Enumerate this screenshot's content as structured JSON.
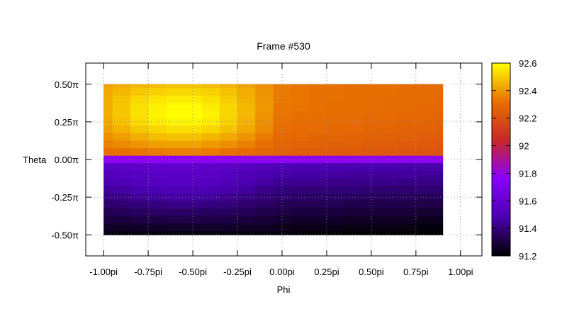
{
  "chart_data": {
    "type": "heatmap",
    "title": "Frame #530",
    "xlabel": "Phi",
    "ylabel": "Theta",
    "xlim": [
      -1.1,
      1.12
    ],
    "ylim": [
      -0.64,
      0.64
    ],
    "x_ticks": [
      {
        "value": -1.0,
        "label": "-1.00pi"
      },
      {
        "value": -0.75,
        "label": "-0.75pi"
      },
      {
        "value": -0.5,
        "label": "-0.50pi"
      },
      {
        "value": -0.25,
        "label": "-0.25pi"
      },
      {
        "value": 0.0,
        "label": "0.00pi"
      },
      {
        "value": 0.25,
        "label": "0.25pi"
      },
      {
        "value": 0.5,
        "label": "0.50pi"
      },
      {
        "value": 0.75,
        "label": "0.75pi"
      },
      {
        "value": 1.0,
        "label": "1.00pi"
      }
    ],
    "y_ticks": [
      {
        "value": 0.5,
        "label": "0.50π"
      },
      {
        "value": 0.25,
        "label": "0.25π"
      },
      {
        "value": 0.0,
        "label": "0.00π"
      },
      {
        "value": -0.25,
        "label": "-0.25π"
      },
      {
        "value": -0.5,
        "label": "-0.50π"
      }
    ],
    "grid": true,
    "data_extent": {
      "x": [
        -1.0,
        0.9
      ],
      "y": [
        -0.5,
        0.5
      ]
    },
    "x_samples": [
      -1.0,
      -0.9,
      -0.8,
      -0.7,
      -0.6,
      -0.5,
      -0.4,
      -0.3,
      -0.2,
      -0.1,
      0.0,
      0.1,
      0.2,
      0.3,
      0.4,
      0.5,
      0.6,
      0.7,
      0.8,
      0.9
    ],
    "y_samples": [
      0.5,
      0.45,
      0.4,
      0.35,
      0.3,
      0.25,
      0.2,
      0.15,
      0.1,
      0.05,
      0.0,
      -0.05,
      -0.1,
      -0.15,
      -0.2,
      -0.25,
      -0.3,
      -0.35,
      -0.4,
      -0.45,
      -0.5
    ],
    "z": [
      [
        92.42,
        92.44,
        92.46,
        92.47,
        92.48,
        92.48,
        92.47,
        92.45,
        92.42,
        92.38,
        92.34,
        92.33,
        92.32,
        92.32,
        92.31,
        92.31,
        92.31,
        92.3,
        92.3,
        92.3
      ],
      [
        92.43,
        92.46,
        92.49,
        92.51,
        92.52,
        92.52,
        92.51,
        92.48,
        92.44,
        92.39,
        92.34,
        92.33,
        92.32,
        92.32,
        92.31,
        92.31,
        92.31,
        92.3,
        92.3,
        92.3
      ],
      [
        92.44,
        92.48,
        92.52,
        92.55,
        92.56,
        92.56,
        92.54,
        92.5,
        92.45,
        92.39,
        92.34,
        92.33,
        92.32,
        92.32,
        92.31,
        92.31,
        92.3,
        92.3,
        92.3,
        92.29
      ],
      [
        92.44,
        92.49,
        92.54,
        92.57,
        92.59,
        92.59,
        92.56,
        92.52,
        92.46,
        92.4,
        92.33,
        92.33,
        92.32,
        92.31,
        92.31,
        92.31,
        92.3,
        92.3,
        92.29,
        92.29
      ],
      [
        92.44,
        92.49,
        92.54,
        92.58,
        92.6,
        92.6,
        92.57,
        92.52,
        92.46,
        92.39,
        92.33,
        92.32,
        92.32,
        92.31,
        92.31,
        92.3,
        92.3,
        92.29,
        92.29,
        92.28
      ],
      [
        92.43,
        92.48,
        92.53,
        92.56,
        92.58,
        92.58,
        92.56,
        92.51,
        92.45,
        92.38,
        92.32,
        92.31,
        92.31,
        92.3,
        92.3,
        92.29,
        92.29,
        92.28,
        92.28,
        92.27
      ],
      [
        92.41,
        92.45,
        92.49,
        92.52,
        92.54,
        92.54,
        92.52,
        92.48,
        92.43,
        92.37,
        92.31,
        92.3,
        92.3,
        92.29,
        92.29,
        92.28,
        92.28,
        92.27,
        92.27,
        92.26
      ],
      [
        92.38,
        92.41,
        92.44,
        92.47,
        92.48,
        92.48,
        92.46,
        92.43,
        92.39,
        92.34,
        92.29,
        92.29,
        92.28,
        92.28,
        92.27,
        92.27,
        92.26,
        92.26,
        92.25,
        92.25
      ],
      [
        92.35,
        92.37,
        92.39,
        92.41,
        92.42,
        92.42,
        92.4,
        92.38,
        92.35,
        92.31,
        92.28,
        92.27,
        92.27,
        92.26,
        92.26,
        92.25,
        92.25,
        92.24,
        92.24,
        92.23
      ],
      [
        92.31,
        92.32,
        92.33,
        92.34,
        92.35,
        92.35,
        92.34,
        92.32,
        92.3,
        92.28,
        92.26,
        92.25,
        92.25,
        92.24,
        92.24,
        92.23,
        92.23,
        92.22,
        92.22,
        92.21
      ],
      [
        91.78,
        91.78,
        91.78,
        91.78,
        91.78,
        91.78,
        91.78,
        91.78,
        91.78,
        91.78,
        91.78,
        91.78,
        91.78,
        91.78,
        91.78,
        91.78,
        91.78,
        91.78,
        91.78,
        91.78
      ],
      [
        91.55,
        91.56,
        91.57,
        91.58,
        91.58,
        91.58,
        91.57,
        91.56,
        91.54,
        91.52,
        91.5,
        91.49,
        91.49,
        91.48,
        91.48,
        91.48,
        91.48,
        91.47,
        91.47,
        91.47
      ],
      [
        91.51,
        91.53,
        91.54,
        91.55,
        91.56,
        91.56,
        91.55,
        91.53,
        91.51,
        91.49,
        91.47,
        91.46,
        91.46,
        91.46,
        91.45,
        91.45,
        91.45,
        91.45,
        91.44,
        91.44
      ],
      [
        91.48,
        91.5,
        91.52,
        91.53,
        91.54,
        91.54,
        91.53,
        91.51,
        91.49,
        91.46,
        91.43,
        91.43,
        91.43,
        91.42,
        91.42,
        91.42,
        91.42,
        91.41,
        91.41,
        91.41
      ],
      [
        91.44,
        91.46,
        91.48,
        91.49,
        91.5,
        91.5,
        91.49,
        91.47,
        91.45,
        91.42,
        91.4,
        91.39,
        91.39,
        91.39,
        91.39,
        91.38,
        91.38,
        91.38,
        91.38,
        91.37
      ],
      [
        91.41,
        91.42,
        91.44,
        91.45,
        91.46,
        91.46,
        91.45,
        91.43,
        91.41,
        91.39,
        91.37,
        91.36,
        91.36,
        91.36,
        91.35,
        91.35,
        91.35,
        91.35,
        91.34,
        91.34
      ],
      [
        91.37,
        91.38,
        91.39,
        91.4,
        91.41,
        91.41,
        91.4,
        91.39,
        91.37,
        91.36,
        91.34,
        91.33,
        91.33,
        91.33,
        91.32,
        91.32,
        91.32,
        91.32,
        91.31,
        91.31
      ],
      [
        91.33,
        91.34,
        91.35,
        91.36,
        91.36,
        91.36,
        91.35,
        91.35,
        91.34,
        91.32,
        91.31,
        91.3,
        91.3,
        91.3,
        91.29,
        91.29,
        91.29,
        91.29,
        91.28,
        91.28
      ],
      [
        91.3,
        91.3,
        91.31,
        91.31,
        91.32,
        91.32,
        91.31,
        91.31,
        91.3,
        91.29,
        91.28,
        91.27,
        91.27,
        91.27,
        91.26,
        91.26,
        91.26,
        91.26,
        91.25,
        91.25
      ],
      [
        91.26,
        91.26,
        91.27,
        91.27,
        91.27,
        91.27,
        91.27,
        91.27,
        91.26,
        91.26,
        91.25,
        91.24,
        91.24,
        91.24,
        91.23,
        91.23,
        91.23,
        91.23,
        91.22,
        91.22
      ],
      [
        91.22,
        91.22,
        91.22,
        91.22,
        91.23,
        91.23,
        91.23,
        91.22,
        91.22,
        91.22,
        91.22,
        91.21,
        91.21,
        91.21,
        91.2,
        91.2,
        91.2,
        91.2,
        91.2,
        91.2
      ]
    ],
    "colorbar": {
      "range": [
        91.2,
        92.6
      ],
      "ticks": [
        {
          "value": 92.6,
          "label": "92.6"
        },
        {
          "value": 92.4,
          "label": "92.4"
        },
        {
          "value": 92.2,
          "label": "92.2"
        },
        {
          "value": 92.0,
          "label": "92"
        },
        {
          "value": 91.8,
          "label": "91.8"
        },
        {
          "value": 91.6,
          "label": "91.6"
        },
        {
          "value": 91.4,
          "label": "91.4"
        },
        {
          "value": 91.2,
          "label": "91.2"
        }
      ],
      "palette": "black-blue-purple-red-orange-yellow",
      "colors": [
        "#000000",
        "#4a00b0",
        "#8800ff",
        "#c82828",
        "#e87000",
        "#ffff00"
      ]
    }
  }
}
